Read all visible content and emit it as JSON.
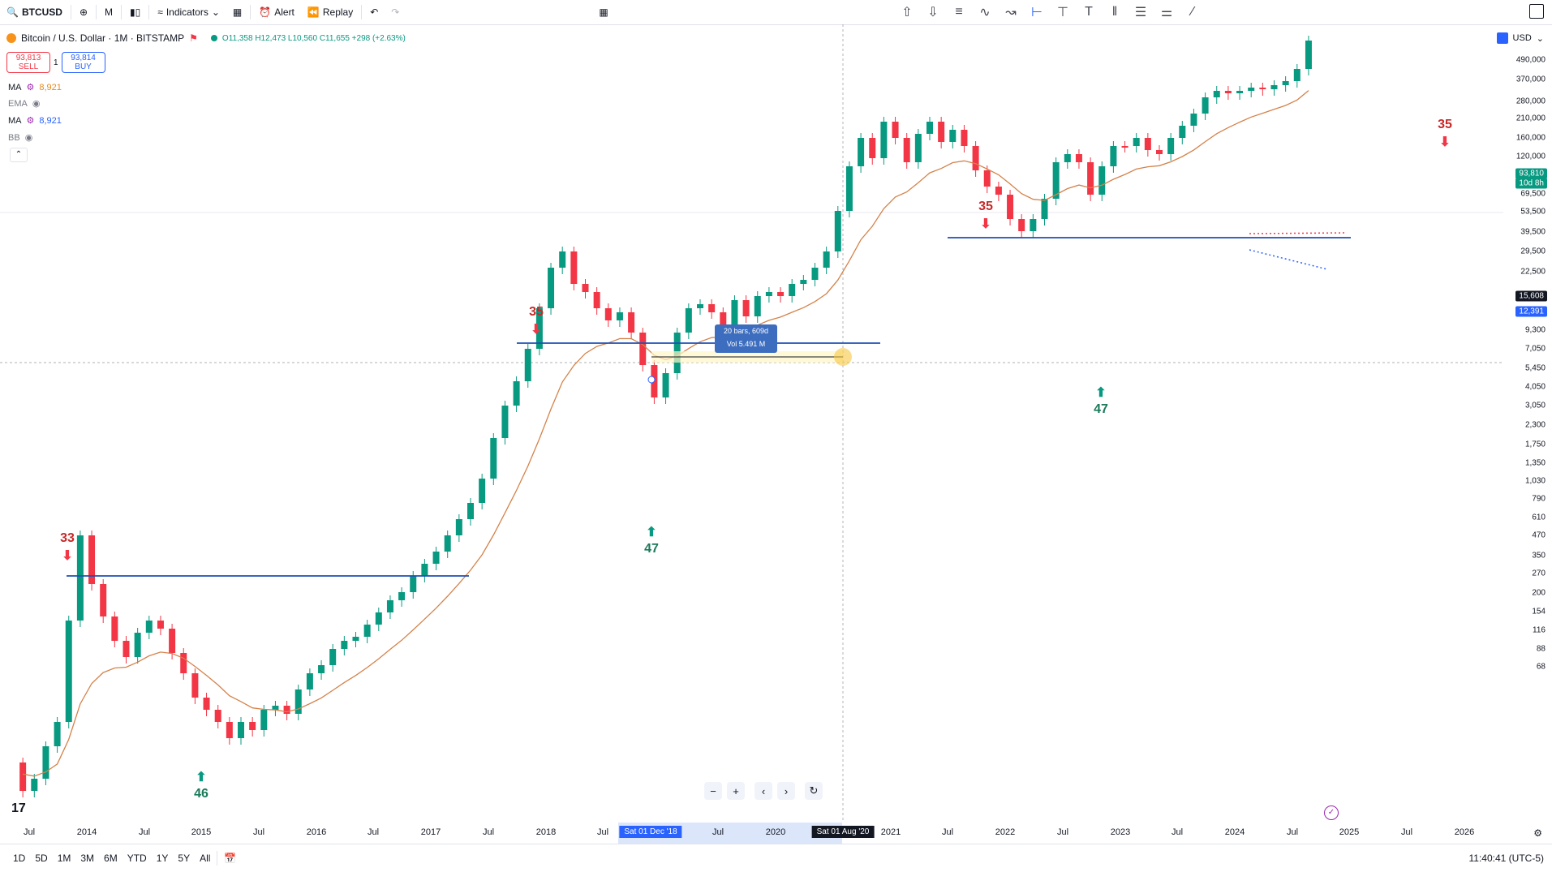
{
  "topbar": {
    "symbol": "BTCUSD",
    "interval": "M",
    "indicators": "Indicators",
    "alert": "Alert",
    "replay": "Replay"
  },
  "legend": {
    "title": "Bitcoin / U.S. Dollar · 1M · BITSTAMP",
    "ohlc": "O11,358 H12,473 L10,560 C11,655 +298 (+2.63%)"
  },
  "trade": {
    "sell_price": "93,813",
    "sell_label": "SELL",
    "qty": "1",
    "buy_price": "93,814",
    "buy_label": "BUY"
  },
  "indicators": [
    {
      "name": "MA",
      "value": "8,921",
      "color": "#e8891c"
    },
    {
      "name": "EMA",
      "value": "",
      "color": "#787b86"
    },
    {
      "name": "MA",
      "value": "8,921",
      "color": "#2962ff"
    },
    {
      "name": "BB",
      "value": "",
      "color": "#787b86"
    }
  ],
  "currency": "USD",
  "price_labels": [
    "490,000",
    "370,000",
    "280,000",
    "210,000",
    "160,000",
    "120,000",
    "69,500",
    "53,500",
    "39,500",
    "29,500",
    "22,500",
    "9,300",
    "7,050",
    "5,450",
    "4,050",
    "3,050",
    "2,300",
    "1,750",
    "1,350",
    "1,030",
    "790",
    "610",
    "470",
    "350",
    "270",
    "200",
    "154",
    "116",
    "88",
    "68"
  ],
  "price_tags": {
    "last": "93,810",
    "countdown": "10d 8h",
    "crosshair": "15,608",
    "ma": "12,391"
  },
  "time_labels": [
    "Jul",
    "2014",
    "Jul",
    "2015",
    "Jul",
    "2016",
    "Jul",
    "2017",
    "Jul",
    "2018",
    "Jul",
    "Jul",
    "2020",
    "2021",
    "Jul",
    "2022",
    "Jul",
    "2023",
    "Jul",
    "2024",
    "Jul",
    "2025",
    "Jul",
    "2026"
  ],
  "time_tags": [
    "Sat 01 Dec '18",
    "Sat 01 Aug '20"
  ],
  "timeframes": [
    "1D",
    "5D",
    "1M",
    "3M",
    "6M",
    "YTD",
    "1Y",
    "5Y",
    "All"
  ],
  "clock": "11:40:41 (UTC-5)",
  "annotations": [
    {
      "label": "33",
      "kind": "top"
    },
    {
      "label": "46",
      "kind": "bottom"
    },
    {
      "label": "35",
      "kind": "top"
    },
    {
      "label": "47",
      "kind": "bottom"
    },
    {
      "label": "35",
      "kind": "top"
    },
    {
      "label": "47",
      "kind": "bottom"
    },
    {
      "label": "35",
      "kind": "top"
    }
  ],
  "measure": {
    "bars": "20 bars, 609d",
    "vol": "Vol 5.491 M"
  },
  "colors": {
    "up": "#089981",
    "down": "#f23645",
    "ma_line": "#d4824a",
    "hline": "#1e4fb5"
  }
}
